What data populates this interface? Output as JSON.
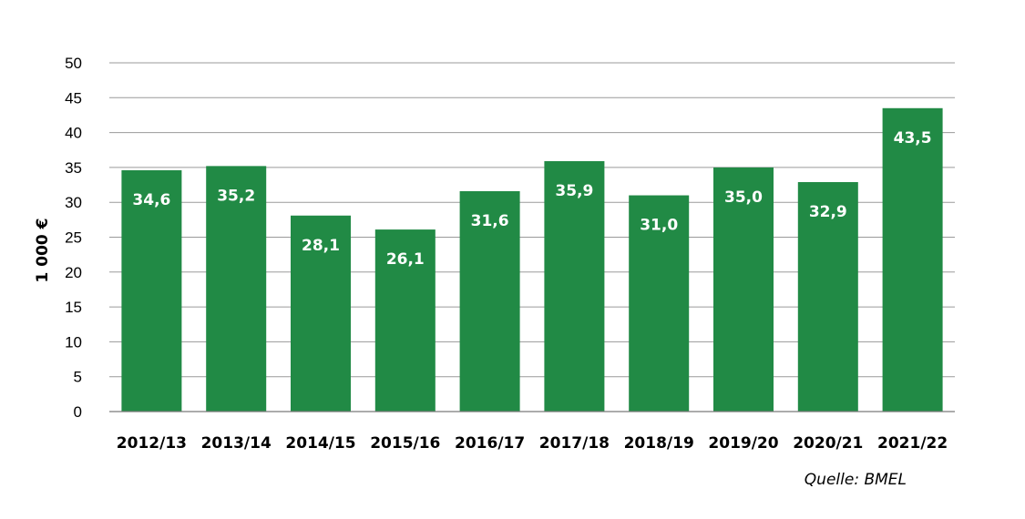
{
  "chart_data": {
    "type": "bar",
    "categories": [
      "2012/13",
      "2013/14",
      "2014/15",
      "2015/16",
      "2016/17",
      "2017/18",
      "2018/19",
      "2019/20",
      "2020/21",
      "2021/22"
    ],
    "values": [
      34.6,
      35.2,
      28.1,
      26.1,
      31.6,
      35.9,
      31.0,
      35.0,
      32.9,
      43.5
    ],
    "data_labels": [
      "34,6",
      "35,2",
      "28,1",
      "26,1",
      "31,6",
      "35,9",
      "31,0",
      "35,0",
      "32,9",
      "43,5"
    ],
    "ylabel": "1 000 €",
    "ylim": [
      0,
      50
    ],
    "yticks": [
      0,
      5,
      10,
      15,
      20,
      25,
      30,
      35,
      40,
      45,
      50
    ],
    "grid": true,
    "bar_color": "#218a45",
    "source": "Quelle: BMEL"
  }
}
